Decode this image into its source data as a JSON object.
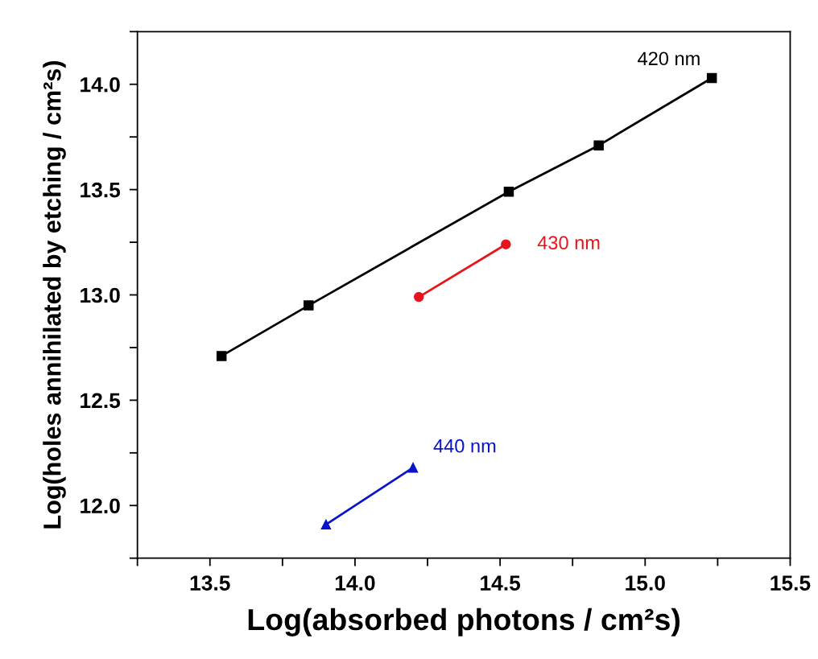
{
  "chart_data": {
    "type": "line",
    "xlabel": "Log(absorbed photons / cm²s)",
    "ylabel": "Log(holes annihilated by etching / cm²s)",
    "xlim": [
      13.25,
      15.5
    ],
    "xticks": [
      {
        "value": 13.25,
        "label": null
      },
      {
        "value": 13.5,
        "label": "13.5"
      },
      {
        "value": 13.75,
        "label": null
      },
      {
        "value": 14.0,
        "label": "14.0"
      },
      {
        "value": 14.25,
        "label": null
      },
      {
        "value": 14.5,
        "label": "14.5"
      },
      {
        "value": 14.75,
        "label": null
      },
      {
        "value": 15.0,
        "label": "15.0"
      },
      {
        "value": 15.25,
        "label": null
      },
      {
        "value": 15.5,
        "label": "15.5"
      }
    ],
    "ylim": [
      11.75,
      14.25
    ],
    "yticks": [
      {
        "value": 11.75,
        "label": null
      },
      {
        "value": 12.0,
        "label": "12.0"
      },
      {
        "value": 12.25,
        "label": null
      },
      {
        "value": 12.5,
        "label": "12.5"
      },
      {
        "value": 12.75,
        "label": null
      },
      {
        "value": 13.0,
        "label": "13.0"
      },
      {
        "value": 13.25,
        "label": null
      },
      {
        "value": 13.5,
        "label": "13.5"
      },
      {
        "value": 13.75,
        "label": null
      },
      {
        "value": 14.0,
        "label": "14.0"
      },
      {
        "value": 14.25,
        "label": null
      }
    ],
    "grid": false,
    "legend": false,
    "series": [
      {
        "name": "420 nm",
        "color": "#000000",
        "marker": "square",
        "x": [
          13.54,
          13.84,
          14.53,
          14.84,
          15.23
        ],
        "values": [
          12.71,
          12.95,
          13.49,
          13.71,
          14.03
        ]
      },
      {
        "name": "430 nm",
        "color": "#e8141c",
        "marker": "circle",
        "x": [
          14.22,
          14.52
        ],
        "values": [
          12.99,
          13.24
        ]
      },
      {
        "name": "440 nm",
        "color": "#0a14c8",
        "marker": "triangle",
        "x": [
          13.9,
          14.2
        ],
        "values": [
          11.91,
          12.18
        ]
      }
    ]
  }
}
